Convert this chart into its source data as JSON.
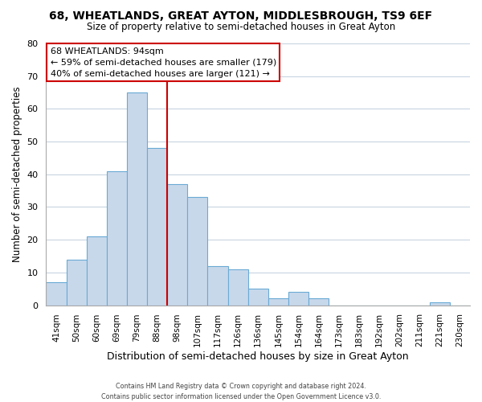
{
  "title": "68, WHEATLANDS, GREAT AYTON, MIDDLESBROUGH, TS9 6EF",
  "subtitle": "Size of property relative to semi-detached houses in Great Ayton",
  "xlabel": "Distribution of semi-detached houses by size in Great Ayton",
  "ylabel": "Number of semi-detached properties",
  "bar_labels": [
    "41sqm",
    "50sqm",
    "60sqm",
    "69sqm",
    "79sqm",
    "88sqm",
    "98sqm",
    "107sqm",
    "117sqm",
    "126sqm",
    "136sqm",
    "145sqm",
    "154sqm",
    "164sqm",
    "173sqm",
    "183sqm",
    "192sqm",
    "202sqm",
    "211sqm",
    "221sqm",
    "230sqm"
  ],
  "bar_values": [
    7,
    14,
    21,
    41,
    65,
    48,
    37,
    33,
    12,
    11,
    5,
    2,
    4,
    2,
    0,
    0,
    0,
    0,
    0,
    1,
    0
  ],
  "bar_color": "#c8d8eb",
  "bar_edge_color": "#6aaad4",
  "vline_x": 6.0,
  "vline_color": "#cc0000",
  "ylim": [
    0,
    80
  ],
  "yticks": [
    0,
    10,
    20,
    30,
    40,
    50,
    60,
    70,
    80
  ],
  "annotation_title": "68 WHEATLANDS: 94sqm",
  "annotation_line1": "← 59% of semi-detached houses are smaller (179)",
  "annotation_line2": "40% of semi-detached houses are larger (121) →",
  "annotation_box_color": "#ffffff",
  "annotation_box_edge": "#cc0000",
  "footer_line1": "Contains HM Land Registry data © Crown copyright and database right 2024.",
  "footer_line2": "Contains public sector information licensed under the Open Government Licence v3.0.",
  "background_color": "#ffffff",
  "grid_color": "#c8d4e0"
}
